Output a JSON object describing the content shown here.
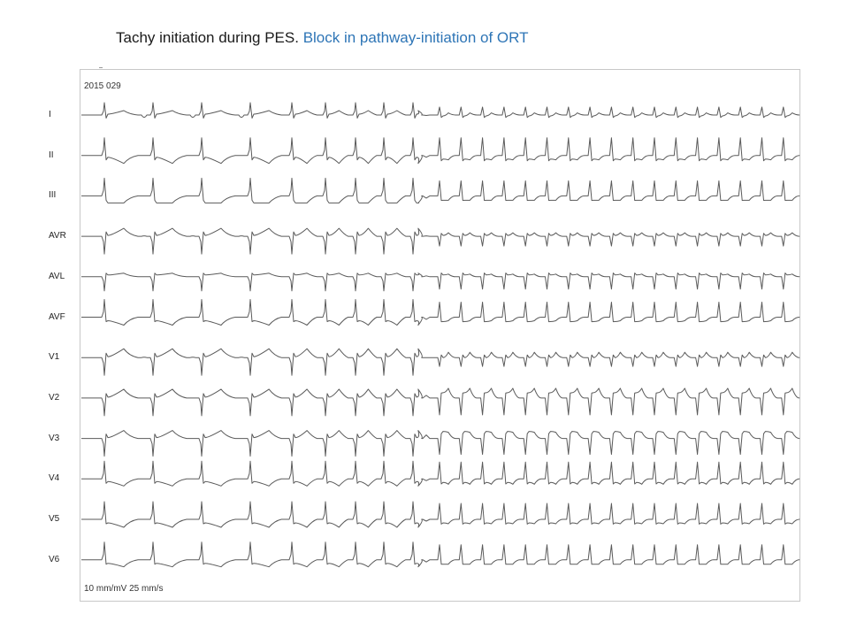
{
  "title": {
    "main": "Tachy initiation during PES.",
    "accent": "Block in pathway-initiation of ORT",
    "accent_color": "#2e75b6"
  },
  "ecg": {
    "record_id": "2015 029",
    "scale_text": "10 mm/mV   25 mm/s",
    "trace_color": "#5a5a5a",
    "leads": [
      {
        "name": "I",
        "wide": [
          0.7,
          0.05,
          0.25,
          -0.25
        ],
        "narrow": [
          0.45,
          -0.05,
          0.12,
          0.0
        ]
      },
      {
        "name": "II",
        "wide": [
          1.0,
          -0.1,
          -0.45,
          0.0
        ],
        "narrow": [
          1.0,
          -0.2,
          -0.25,
          0.0
        ]
      },
      {
        "name": "III",
        "wide": [
          1.0,
          -0.4,
          -0.4,
          0.0
        ],
        "narrow": [
          0.85,
          -0.25,
          -0.25,
          0.0
        ]
      },
      {
        "name": "AVR",
        "wide": [
          -1.0,
          0.05,
          0.45,
          0.05
        ],
        "narrow": [
          -0.55,
          0.05,
          0.2,
          0.0
        ]
      },
      {
        "name": "AVL",
        "wide": [
          -0.8,
          0.1,
          0.2,
          0.0
        ],
        "narrow": [
          -0.7,
          0.1,
          0.15,
          0.0
        ]
      },
      {
        "name": "AVF",
        "wide": [
          1.0,
          -0.2,
          -0.45,
          0.0
        ],
        "narrow": [
          0.85,
          -0.25,
          -0.2,
          0.0
        ]
      },
      {
        "name": "V1",
        "wide": [
          -1.0,
          0.05,
          0.5,
          0.05
        ],
        "narrow": [
          -0.5,
          0.0,
          0.3,
          0.0
        ]
      },
      {
        "name": "V2",
        "wide": [
          -1.0,
          0.05,
          0.5,
          0.0
        ],
        "narrow": [
          -0.95,
          0.3,
          0.55,
          0.0
        ]
      },
      {
        "name": "V3",
        "wide": [
          -1.0,
          0.05,
          0.45,
          0.0
        ],
        "narrow": [
          -0.9,
          0.4,
          0.35,
          0.0
        ]
      },
      {
        "name": "V4",
        "wide": [
          1.0,
          -0.15,
          -0.4,
          0.0
        ],
        "narrow": [
          0.95,
          -0.2,
          -0.3,
          0.0
        ]
      },
      {
        "name": "V5",
        "wide": [
          1.0,
          -0.2,
          -0.45,
          0.0
        ],
        "narrow": [
          0.9,
          -0.2,
          -0.25,
          0.0
        ]
      },
      {
        "name": "V6",
        "wide": [
          1.0,
          -0.2,
          -0.4,
          0.0
        ],
        "narrow": [
          0.85,
          -0.25,
          -0.25,
          0.0
        ]
      }
    ]
  }
}
